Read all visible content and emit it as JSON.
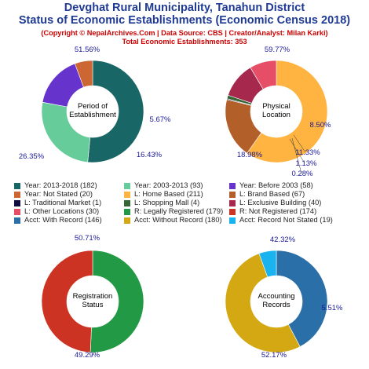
{
  "header": {
    "title_line1": "Devghat Rural Municipality, Tanahun District",
    "title_line2": "Status of Economic Establishments (Economic Census 2018)",
    "copyright": "(Copyright © NepalArchives.Com | Data Source: CBS | Creator/Analyst: Milan Karki)",
    "total": "Total Economic Establishments: 353"
  },
  "legend": [
    {
      "label": "Year: 2013-2018 (182)",
      "color": "#196666"
    },
    {
      "label": "Year: 2003-2013 (93)",
      "color": "#66cc99"
    },
    {
      "label": "Year: Before 2003 (58)",
      "color": "#6633cc"
    },
    {
      "label": "Year: Not Stated (20)",
      "color": "#cc6633"
    },
    {
      "label": "L: Home Based (211)",
      "color": "#ffb340"
    },
    {
      "label": "L: Brand Based (67)",
      "color": "#b35f2a"
    },
    {
      "label": "L: Traditional Market (1)",
      "color": "#0d0d40"
    },
    {
      "label": "L: Shopping Mall (4)",
      "color": "#336633"
    },
    {
      "label": "L: Exclusive Building (40)",
      "color": "#a6294d"
    },
    {
      "label": "L: Other Locations (30)",
      "color": "#e64d66"
    },
    {
      "label": "R: Legally Registered (179)",
      "color": "#229944"
    },
    {
      "label": "R: Not Registered (174)",
      "color": "#cc3322"
    },
    {
      "label": "Acct: With Record (146)",
      "color": "#2a6fa8"
    },
    {
      "label": "Acct: Without Record (180)",
      "color": "#d4a812"
    },
    {
      "label": "Acct: Record Not Stated (19)",
      "color": "#19b3f0"
    }
  ],
  "chart_data": [
    {
      "type": "pie",
      "donut": true,
      "center_label": "Period of\nEstablishment",
      "categories": [
        "Year: 2013-2018",
        "Year: 2003-2013",
        "Year: Before 2003",
        "Year: Not Stated"
      ],
      "values": [
        182,
        93,
        58,
        20
      ],
      "percent_labels": [
        "51.56%",
        "26.35%",
        "16.43%",
        "5.67%"
      ],
      "colors": [
        "#196666",
        "#66cc99",
        "#6633cc",
        "#cc6633"
      ]
    },
    {
      "type": "pie",
      "donut": true,
      "center_label": "Physical\nLocation",
      "categories": [
        "L: Home Based",
        "L: Brand Based",
        "L: Traditional Market",
        "L: Shopping Mall",
        "L: Exclusive Building",
        "L: Other Locations"
      ],
      "values": [
        211,
        67,
        1,
        4,
        40,
        30
      ],
      "percent_labels": [
        "59.77%",
        "18.98%",
        "0.28%",
        "1.13%",
        "11.33%",
        "8.50%"
      ],
      "colors": [
        "#ffb340",
        "#b35f2a",
        "#0d0d40",
        "#336633",
        "#a6294d",
        "#e64d66"
      ]
    },
    {
      "type": "pie",
      "donut": true,
      "center_label": "Registration\nStatus",
      "categories": [
        "R: Legally Registered",
        "R: Not Registered"
      ],
      "values": [
        179,
        174
      ],
      "percent_labels": [
        "50.71%",
        "49.29%"
      ],
      "colors": [
        "#229944",
        "#cc3322"
      ]
    },
    {
      "type": "pie",
      "donut": true,
      "center_label": "Accounting\nRecords",
      "categories": [
        "Acct: With Record",
        "Acct: Without Record",
        "Acct: Record Not Stated"
      ],
      "values": [
        146,
        180,
        19
      ],
      "percent_labels": [
        "42.32%",
        "52.17%",
        "5.51%"
      ],
      "colors": [
        "#2a6fa8",
        "#d4a812",
        "#19b3f0"
      ]
    }
  ]
}
